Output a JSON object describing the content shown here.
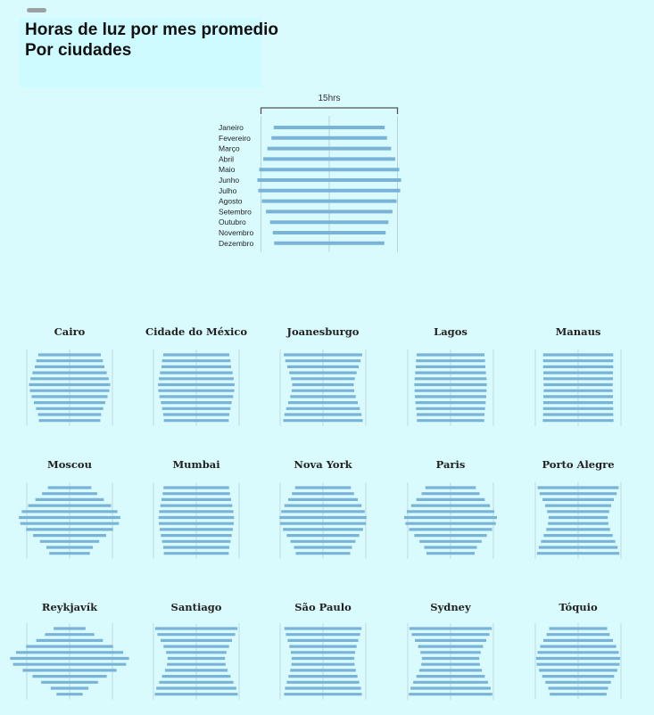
{
  "header": {
    "title_line1": "Horas de luz por mes promedio",
    "title_line2": "Por ciudades"
  },
  "colors": {
    "bar": "#7ab3d8",
    "guide": "#b9d3d8",
    "background": "#d9fbfd"
  },
  "chart_data": [
    {
      "type": "bar",
      "orientation": "horizontal-centered",
      "title": "",
      "scale_label": "15hrs",
      "scale_hours": 15,
      "categories": [
        "Janeiro",
        "Fevereiro",
        "Março",
        "Abril",
        "Maio",
        "Junho",
        "Julho",
        "Agosto",
        "Setembro",
        "Outubro",
        "Novembro",
        "Dezembro"
      ],
      "values": [
        12.2,
        12.7,
        13.6,
        14.5,
        15.4,
        15.8,
        15.6,
        14.8,
        13.9,
        13.0,
        12.4,
        12.1
      ]
    },
    {
      "small_multiples": [
        {
          "name": "Cairo",
          "values": [
            10.8,
            11.5,
            12.0,
            12.8,
            13.5,
            14.0,
            13.7,
            13.1,
            12.3,
            11.6,
            10.9,
            10.6
          ]
        },
        {
          "name": "Cidade do México",
          "values": [
            11.4,
            11.8,
            12.0,
            12.5,
            12.9,
            13.2,
            13.1,
            12.7,
            12.2,
            11.8,
            11.4,
            11.2
          ]
        },
        {
          "name": "Joanesburgo",
          "values": [
            13.5,
            13.0,
            12.3,
            11.6,
            11.0,
            10.6,
            10.8,
            11.3,
            12.0,
            12.7,
            13.3,
            13.7
          ]
        },
        {
          "name": "Lagos",
          "values": [
            11.7,
            11.9,
            12.0,
            12.2,
            12.4,
            12.5,
            12.4,
            12.3,
            12.1,
            11.9,
            11.7,
            11.6
          ]
        },
        {
          "name": "Manaus",
          "values": [
            12.1,
            12.1,
            12.1,
            12.0,
            12.0,
            11.9,
            11.9,
            12.0,
            12.0,
            12.1,
            12.1,
            12.2
          ]
        },
        {
          "name": "Moscou",
          "values": [
            7.5,
            9.5,
            11.8,
            14.3,
            16.5,
            17.5,
            17.0,
            15.0,
            12.6,
            10.2,
            8.0,
            7.0
          ]
        },
        {
          "name": "Mumbai",
          "values": [
            11.3,
            11.6,
            12.0,
            12.4,
            12.8,
            13.0,
            12.9,
            12.6,
            12.2,
            11.8,
            11.4,
            11.2
          ]
        },
        {
          "name": "Nova York",
          "values": [
            9.6,
            10.7,
            12.0,
            13.3,
            14.4,
            15.0,
            14.8,
            13.8,
            12.5,
            11.2,
            10.0,
            9.4
          ]
        },
        {
          "name": "Paris",
          "values": [
            8.7,
            10.0,
            11.8,
            13.6,
            15.1,
            16.0,
            15.6,
            14.3,
            12.5,
            10.7,
            9.1,
            8.3
          ]
        },
        {
          "name": "Porto Alegre",
          "values": [
            14.0,
            13.3,
            12.3,
            11.4,
            10.7,
            10.2,
            10.4,
            11.0,
            11.9,
            12.8,
            13.6,
            14.2
          ]
        },
        {
          "name": "Reykjavík",
          "values": [
            5.5,
            8.5,
            11.5,
            15.0,
            18.5,
            20.5,
            19.5,
            16.2,
            12.8,
            9.8,
            6.5,
            4.5
          ]
        },
        {
          "name": "Santiago",
          "values": [
            14.2,
            13.4,
            12.3,
            11.3,
            10.4,
            9.9,
            10.1,
            10.8,
            11.8,
            12.8,
            13.8,
            14.3
          ]
        },
        {
          "name": "São Paulo",
          "values": [
            13.3,
            12.8,
            12.2,
            11.6,
            11.1,
            10.8,
            10.9,
            11.3,
            11.9,
            12.5,
            13.1,
            13.4
          ]
        },
        {
          "name": "Sydney",
          "values": [
            14.2,
            13.4,
            12.3,
            11.2,
            10.4,
            9.9,
            10.1,
            10.8,
            11.8,
            12.9,
            13.8,
            14.4
          ]
        },
        {
          "name": "Tóquio",
          "values": [
            10.0,
            10.9,
            12.0,
            13.1,
            14.0,
            14.5,
            14.3,
            13.5,
            12.4,
            11.3,
            10.3,
            9.8
          ]
        }
      ]
    }
  ]
}
